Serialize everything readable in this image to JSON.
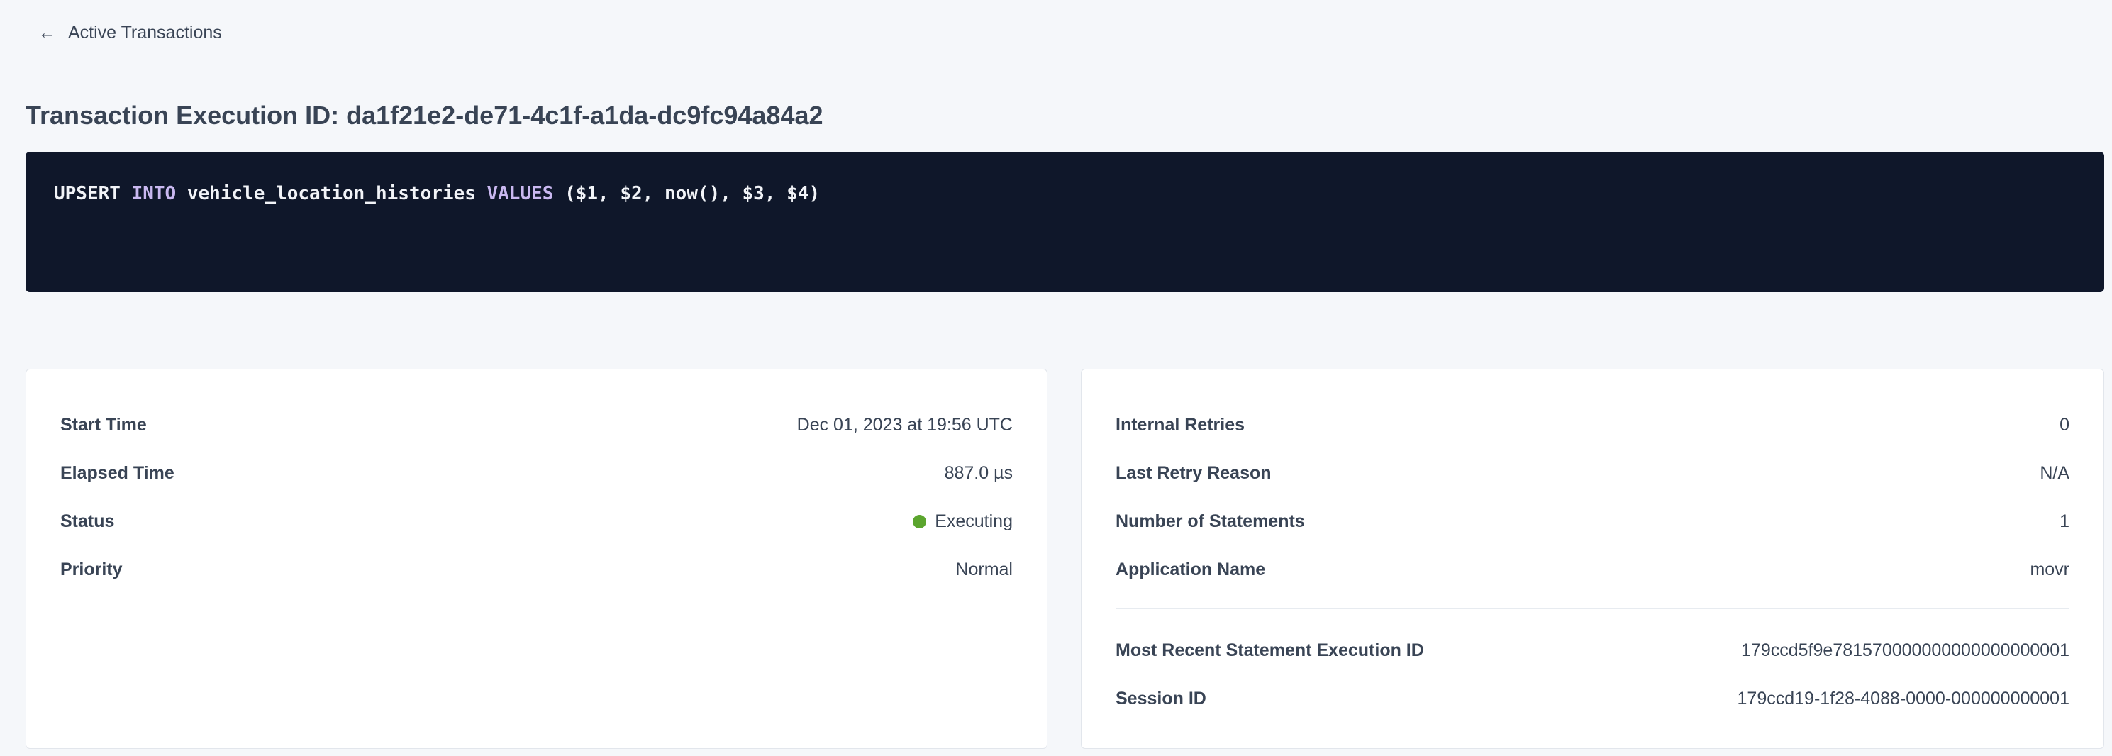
{
  "nav": {
    "back_label": "Active Transactions",
    "back_icon": "arrow-left-icon"
  },
  "title": "Transaction Execution ID: da1f21e2-de71-4c1f-a1da-dc9fc94a84a2",
  "sql": {
    "t1": "UPSERT ",
    "k1": "INTO",
    "t2": " vehicle_location_histories ",
    "k2": "VALUES",
    "t3": " ($1, $2, now(), $3, $4)"
  },
  "left_card": [
    {
      "label": "Start Time",
      "value": "Dec 01, 2023 at 19:56 UTC"
    },
    {
      "label": "Elapsed Time",
      "value": "887.0 µs"
    },
    {
      "label": "Status",
      "value": "Executing",
      "status_color": "#5ba52e"
    },
    {
      "label": "Priority",
      "value": "Normal"
    }
  ],
  "right_card": [
    {
      "label": "Internal Retries",
      "value": "0"
    },
    {
      "label": "Last Retry Reason",
      "value": "N/A"
    },
    {
      "label": "Number of Statements",
      "value": "1"
    },
    {
      "label": "Application Name",
      "value": "movr"
    }
  ],
  "right_links": [
    {
      "label": "Most Recent Statement Execution ID",
      "value": "179ccd5f9e781570000000000000000001"
    },
    {
      "label": "Session ID",
      "value": "179ccd19-1f28-4088-0000-000000000001"
    }
  ],
  "colors": {
    "link": "#0a4ef0",
    "code_bg": "#0f172a",
    "keyword": "#c9b8f0"
  }
}
